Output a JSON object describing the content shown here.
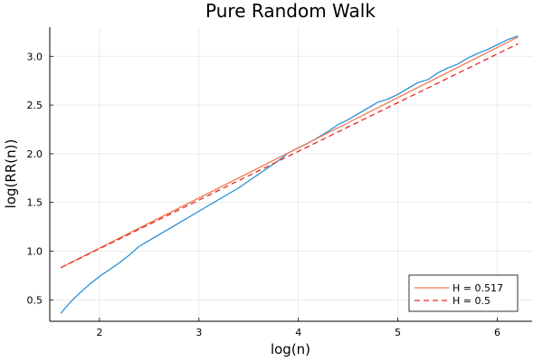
{
  "chart_data": {
    "type": "line",
    "title": "Pure Random Walk",
    "xlabel": "log(n)",
    "ylabel": "log(RR(n))",
    "xlim": [
      1.5,
      6.35
    ],
    "ylim": [
      0.28,
      3.3
    ],
    "x_ticks": [
      2,
      3,
      4,
      5,
      6
    ],
    "x_tick_labels": [
      "2",
      "3",
      "4",
      "5",
      "6"
    ],
    "y_ticks": [
      0.5,
      1.0,
      1.5,
      2.0,
      2.5,
      3.0
    ],
    "y_tick_labels": [
      "0.5",
      "1.0",
      "1.5",
      "2.0",
      "2.5",
      "3.0"
    ],
    "grid": true,
    "legend_position": "bottom-right",
    "series": [
      {
        "name": "",
        "kind": "data",
        "style": "solid",
        "color": "#1f8ad6",
        "x": [
          1.61,
          1.7,
          1.8,
          1.9,
          2.0,
          2.1,
          2.2,
          2.3,
          2.4,
          2.5,
          2.6,
          2.7,
          2.8,
          2.9,
          3.0,
          3.1,
          3.2,
          3.3,
          3.4,
          3.5,
          3.6,
          3.7,
          3.8,
          3.9,
          4.0,
          4.1,
          4.2,
          4.3,
          4.4,
          4.5,
          4.6,
          4.7,
          4.8,
          4.9,
          5.0,
          5.1,
          5.2,
          5.3,
          5.4,
          5.5,
          5.6,
          5.7,
          5.8,
          5.9,
          6.0,
          6.1,
          6.21
        ],
        "y": [
          0.36,
          0.47,
          0.57,
          0.66,
          0.74,
          0.81,
          0.88,
          0.96,
          1.05,
          1.11,
          1.17,
          1.23,
          1.29,
          1.35,
          1.41,
          1.47,
          1.53,
          1.59,
          1.65,
          1.72,
          1.79,
          1.86,
          1.93,
          2.01,
          2.06,
          2.11,
          2.17,
          2.23,
          2.3,
          2.35,
          2.41,
          2.47,
          2.53,
          2.56,
          2.61,
          2.67,
          2.73,
          2.76,
          2.83,
          2.88,
          2.92,
          2.98,
          3.03,
          3.07,
          3.12,
          3.17,
          3.21
        ]
      },
      {
        "name": "H = 0.517",
        "kind": "fit",
        "style": "solid",
        "color": "#f07a55",
        "x": [
          1.61,
          6.21
        ],
        "y": [
          0.83,
          3.2
        ]
      },
      {
        "name": "H = 0.5",
        "kind": "reference",
        "style": "dashed",
        "color": "#e8291c",
        "x": [
          1.61,
          6.21
        ],
        "y": [
          0.83,
          3.13
        ]
      }
    ]
  }
}
